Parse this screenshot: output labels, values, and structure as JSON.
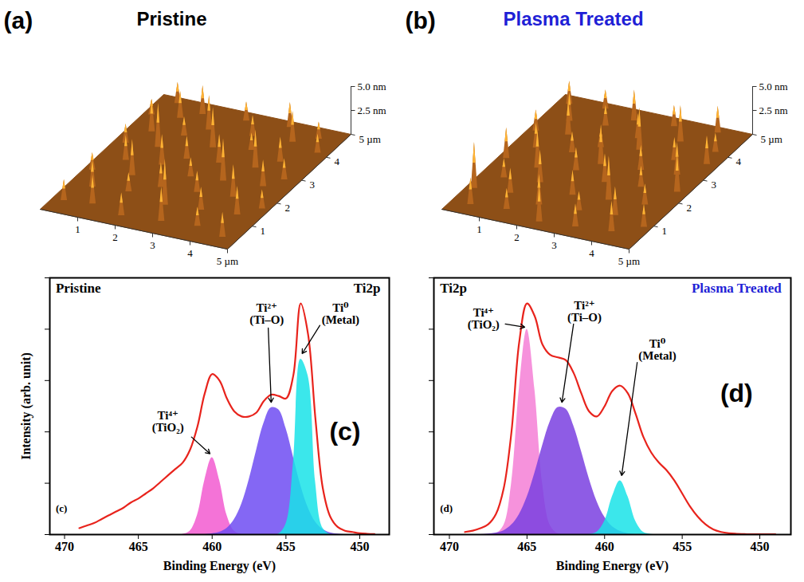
{
  "chart_data": [
    {
      "type": "surface",
      "panel_label": "(a)",
      "title": "Pristine",
      "color": "#b5651d",
      "xlim": [
        0,
        5
      ],
      "ylim": [
        0,
        5
      ],
      "zlim": [
        0,
        5
      ],
      "xticks": [
        1,
        2,
        3,
        4,
        {
          "value": 5,
          "label": "5 µm"
        }
      ],
      "yticks": [
        1,
        2,
        3,
        4,
        {
          "value": 5,
          "label": "5 µm"
        }
      ],
      "zticks": [
        {
          "value": 2.5,
          "label": "2.5 nm"
        },
        {
          "value": 5,
          "label": "5.0 nm"
        }
      ],
      "x": [
        0.5,
        1.3,
        2.4,
        3.5,
        4.4,
        0.2,
        0.9,
        1.8,
        2.9,
        3.9,
        4.7,
        0.6,
        1.4,
        2.3,
        3.2,
        4.1,
        0.3,
        1.1,
        2.0,
        2.8,
        3.7,
        4.6,
        0.7,
        1.6,
        2.5,
        3.3,
        4.3,
        0.2,
        1.2,
        2.1,
        3.0,
        3.9,
        4.8,
        0.6,
        1.5,
        2.6,
        3.5,
        4.4,
        0.3,
        1.0,
        1.9,
        2.9,
        3.8,
        4.6
      ],
      "y": [
        4.8,
        4.6,
        4.7,
        4.8,
        4.6,
        4.2,
        4.3,
        4.1,
        4.2,
        4.3,
        4.1,
        3.6,
        3.7,
        3.5,
        3.7,
        3.5,
        3.0,
        3.1,
        2.9,
        3.0,
        3.1,
        2.9,
        2.4,
        2.5,
        2.3,
        2.4,
        2.5,
        1.8,
        1.9,
        1.7,
        1.8,
        1.9,
        1.7,
        1.2,
        1.3,
        1.1,
        1.2,
        1.3,
        0.5,
        0.6,
        0.4,
        0.5,
        0.6,
        0.4
      ],
      "z": [
        2.2,
        3.0,
        2.0,
        2.6,
        1.8,
        1.6,
        2.8,
        3.6,
        2.2,
        3.2,
        2.0,
        3.4,
        2.0,
        4.2,
        1.8,
        2.6,
        2.0,
        4.6,
        2.4,
        3.0,
        4.0,
        2.2,
        2.6,
        3.2,
        2.0,
        4.4,
        2.8,
        1.8,
        3.8,
        2.6,
        2.2,
        3.4,
        2.0,
        2.8,
        2.0,
        4.8,
        2.4,
        3.0,
        2.2,
        3.0,
        2.4,
        3.6,
        2.0,
        2.6
      ]
    },
    {
      "type": "surface",
      "panel_label": "(b)",
      "title": "Plasma Treated",
      "color": "#b5651d",
      "xlim": [
        0,
        5
      ],
      "ylim": [
        0,
        5
      ],
      "zlim": [
        0,
        5
      ],
      "xticks": [
        1,
        2,
        3,
        4,
        {
          "value": 5,
          "label": "5 µm"
        }
      ],
      "yticks": [
        1,
        2,
        3,
        4,
        {
          "value": 5,
          "label": "5 µm"
        }
      ],
      "zticks": [
        {
          "value": 2.5,
          "label": "2.5 nm"
        },
        {
          "value": 5,
          "label": "5.0 nm"
        }
      ],
      "x": [
        0.3,
        1.2,
        2.1,
        3.1,
        4.2,
        0.7,
        1.6,
        2.6,
        3.6,
        4.6,
        0.2,
        1.0,
        2.0,
        2.9,
        3.9,
        4.7,
        0.6,
        1.5,
        2.4,
        3.4,
        4.3,
        0.2,
        1.1,
        2.0,
        2.9,
        3.8,
        4.7,
        0.6,
        1.5,
        2.5,
        3.4,
        4.3,
        0.2,
        1.1,
        2.0,
        3.0,
        3.9,
        4.8,
        0.5,
        1.4,
        2.4,
        3.3,
        4.2
      ],
      "y": [
        4.7,
        4.8,
        4.6,
        4.7,
        4.8,
        4.1,
        4.2,
        4.0,
        4.2,
        4.1,
        3.5,
        3.6,
        3.4,
        3.6,
        3.5,
        3.6,
        2.9,
        3.0,
        2.8,
        2.9,
        3.0,
        2.3,
        2.2,
        2.4,
        2.2,
        2.3,
        2.4,
        1.6,
        1.7,
        1.5,
        1.6,
        1.7,
        1.0,
        1.1,
        0.9,
        1.0,
        1.1,
        0.9,
        0.4,
        0.5,
        0.3,
        0.4,
        0.5
      ],
      "z": [
        2.4,
        2.0,
        3.2,
        2.2,
        2.8,
        3.0,
        2.2,
        2.6,
        3.8,
        2.0,
        2.2,
        3.6,
        2.0,
        4.4,
        2.4,
        3.0,
        2.6,
        2.2,
        4.2,
        2.6,
        3.4,
        3.2,
        4.0,
        2.4,
        3.0,
        2.2,
        4.0,
        2.0,
        3.4,
        2.6,
        4.6,
        2.2,
        4.8,
        2.6,
        3.2,
        2.0,
        3.0,
        2.4,
        2.8,
        2.2,
        3.8,
        2.4,
        3.2
      ]
    },
    {
      "type": "line",
      "panel_label": "(c)",
      "inner_label": "(c)",
      "title": "Pristine",
      "subtitle": "Ti2p",
      "x_label": "Binding Energy (eV)",
      "y_label": "Intensity (arb. unit)",
      "xlim": [
        471,
        448
      ],
      "xticks": [
        470,
        465,
        460,
        455,
        450
      ],
      "ylim": [
        0,
        100
      ],
      "yticks": [
        0,
        20,
        40,
        60,
        80,
        100
      ],
      "tick_labels": "x",
      "x": [
        469,
        468.5,
        468,
        467.5,
        467,
        466.5,
        466,
        465.5,
        465,
        464.5,
        464,
        463.5,
        463,
        462.5,
        462,
        461.5,
        461,
        460.5,
        460,
        459.5,
        459,
        458.5,
        458,
        457.5,
        457,
        456.5,
        456,
        455.5,
        455,
        454.5,
        454,
        453.5,
        453,
        452.5,
        452,
        451.5,
        451,
        450.5,
        450,
        449.5,
        449
      ],
      "series": [
        {
          "type": "area",
          "name": "Ti⁴⁺ (TiO₂)",
          "color": "#f25bd0",
          "values": [
            0,
            0,
            0,
            0,
            0,
            0,
            0,
            0,
            0,
            0,
            0,
            0,
            0,
            0,
            0.1,
            1.3,
            7.5,
            21.2,
            30,
            21.2,
            7.5,
            1.3,
            0.1,
            0,
            0,
            0,
            0,
            0,
            0,
            0,
            0,
            0,
            0,
            0,
            0,
            0,
            0,
            0,
            0,
            0,
            0
          ]
        },
        {
          "type": "area",
          "name": "Ti²⁺ (Ti–O)",
          "color": "#6f4cf2",
          "values": [
            0,
            0,
            0,
            0,
            0,
            0,
            0,
            0,
            0,
            0,
            0,
            0,
            0,
            0,
            0,
            0,
            0,
            0,
            0.3,
            0.9,
            2.4,
            5.8,
            11.9,
            21.3,
            32.7,
            43.3,
            49.4,
            48.7,
            41.4,
            30.3,
            19.2,
            10.5,
            4.9,
            2,
            0.7,
            0.2,
            0,
            0,
            0,
            0,
            0
          ]
        },
        {
          "type": "area",
          "name": "Ti⁰ (Metal)",
          "color": "#19e3e8",
          "values": [
            0,
            0,
            0,
            0,
            0,
            0,
            0,
            0,
            0,
            0,
            0,
            0,
            0,
            0,
            0,
            0,
            0,
            0,
            0,
            0,
            0,
            0,
            0,
            0,
            0,
            0,
            0,
            0.2,
            4.1,
            27.8,
            68.3,
            61.8,
            20.6,
            2.5,
            0.1,
            0,
            0,
            0,
            0,
            0,
            0
          ]
        },
        {
          "type": "line",
          "color": "#e8231c",
          "values": [
            2.5,
            3.5,
            4.5,
            6,
            7.5,
            9,
            10.5,
            12.5,
            14,
            16,
            18,
            20.5,
            23,
            25.5,
            28,
            33,
            42,
            55,
            62.5,
            60,
            53,
            48,
            46,
            46,
            47.5,
            52,
            54.5,
            54,
            53,
            62,
            90,
            78,
            45,
            18,
            7,
            3,
            1.5,
            1,
            0.5,
            0.3,
            0.2
          ]
        }
      ]
    },
    {
      "type": "line",
      "panel_label": "(d)",
      "inner_label": "(d)",
      "title": "Plasma Treated",
      "subtitle": "Ti2p",
      "x_label": "Binding Energy (eV)",
      "xlim": [
        471,
        448
      ],
      "xticks": [
        470,
        465,
        460,
        455,
        450
      ],
      "ylim": [
        0,
        100
      ],
      "yticks": [
        0,
        20,
        40,
        60,
        80,
        100
      ],
      "tick_labels": "x",
      "x": [
        469,
        468.5,
        468,
        467.5,
        467,
        466.5,
        466,
        465.5,
        465,
        464.5,
        464,
        463.5,
        463,
        462.5,
        462,
        461.5,
        461,
        460.5,
        460,
        459.5,
        459,
        458.5,
        458,
        457.5,
        457,
        456.5,
        456,
        455.5,
        455,
        454.5,
        454,
        453.5,
        453,
        452.5,
        452,
        451.5,
        451,
        450.5,
        450,
        449.5,
        449
      ],
      "series": [
        {
          "type": "area",
          "name": "Ti⁴⁺ (TiO₂)",
          "color": "#f57fd6",
          "values": [
            0,
            0,
            0,
            0,
            0.3,
            3.5,
            19.9,
            56.6,
            80,
            56.6,
            19.9,
            3.5,
            0.3,
            0,
            0,
            0,
            0,
            0,
            0,
            0,
            0,
            0,
            0,
            0,
            0,
            0,
            0,
            0,
            0,
            0,
            0,
            0,
            0,
            0,
            0,
            0,
            0,
            0,
            0,
            0,
            0
          ]
        },
        {
          "type": "area",
          "name": "Ti²⁺ (Ti–O)",
          "color": "#7a3fe0",
          "values": [
            0,
            0,
            0,
            0.2,
            0.6,
            1.5,
            3.7,
            7.8,
            14.5,
            23.9,
            34.6,
            44.1,
            49.5,
            48.9,
            42.5,
            32.5,
            21.9,
            13,
            6.8,
            3.1,
            1.3,
            0.4,
            0,
            0,
            0,
            0,
            0,
            0,
            0,
            0,
            0,
            0,
            0,
            0,
            0,
            0,
            0,
            0,
            0,
            0,
            0
          ]
        },
        {
          "type": "area",
          "name": "Ti⁰ (Metal)",
          "color": "#19e3e8",
          "values": [
            0,
            0,
            0,
            0,
            0,
            0,
            0,
            0,
            0,
            0,
            0,
            0,
            0,
            0,
            0,
            0,
            0,
            0.9,
            5.2,
            14.8,
            21,
            14.8,
            5.2,
            0.9,
            0.1,
            0,
            0,
            0,
            0,
            0,
            0,
            0,
            0,
            0,
            0,
            0,
            0,
            0,
            0,
            0,
            0
          ]
        },
        {
          "type": "line",
          "color": "#e8231c",
          "values": [
            1,
            1.5,
            2.5,
            4,
            8,
            18,
            40,
            75,
            90,
            85,
            74,
            70,
            69,
            68,
            63,
            55,
            48,
            46,
            50,
            56,
            58,
            55,
            47,
            38,
            32,
            28,
            25,
            21,
            16,
            11,
            7,
            4,
            2,
            1,
            0.5,
            0.3,
            0.2,
            0.1,
            0.1,
            0.1,
            0.1
          ]
        }
      ]
    }
  ]
}
